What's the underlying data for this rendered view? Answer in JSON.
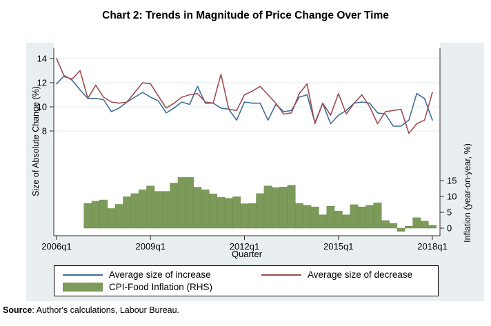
{
  "title": "Chart 2: Trends in Magnitude of Price Change Over Time",
  "source_note": {
    "label": "Source",
    "text": ": Author's calculations, Labour Bureau."
  },
  "colors": {
    "panel_background": "#e9eef1",
    "plot_background": "#ffffff",
    "axis": "#2b2b2b",
    "gridline": "#e3e9ed",
    "increase_line": "#3c6d99",
    "decrease_line": "#a04a50",
    "inflation_bar": "#7c9b5a",
    "inflation_bar_edge": "#6d8a4c"
  },
  "chart_data": {
    "type": "combo",
    "x_axis": {
      "label": "Quarter",
      "tick_labels": [
        "2006q1",
        "2009q1",
        "2012q1",
        "2015q1",
        "2018q1"
      ]
    },
    "y_left": {
      "label": "Size of Absolute Change (%)",
      "ticks": [
        8,
        10,
        12,
        14
      ]
    },
    "y_right": {
      "label": "Inflation (year-on-year, %)",
      "ticks": [
        0,
        5,
        10,
        15
      ]
    },
    "legend_position": "bottom",
    "grid": "horizontal-left-axis-only",
    "quarters": [
      "2006q1",
      "2006q2",
      "2006q3",
      "2006q4",
      "2007q1",
      "2007q2",
      "2007q3",
      "2007q4",
      "2008q1",
      "2008q2",
      "2008q3",
      "2008q4",
      "2009q1",
      "2009q2",
      "2009q3",
      "2009q4",
      "2010q1",
      "2010q2",
      "2010q3",
      "2010q4",
      "2011q1",
      "2011q2",
      "2011q3",
      "2011q4",
      "2012q1",
      "2012q2",
      "2012q3",
      "2012q4",
      "2013q1",
      "2013q2",
      "2013q3",
      "2013q4",
      "2014q1",
      "2014q2",
      "2014q3",
      "2014q4",
      "2015q1",
      "2015q2",
      "2015q3",
      "2015q4",
      "2016q1",
      "2016q2",
      "2016q3",
      "2016q4",
      "2017q1",
      "2017q2",
      "2017q3",
      "2017q4",
      "2018q1"
    ],
    "series": [
      {
        "name": "Average size of increase",
        "type": "line",
        "axis": "left",
        "color": "#3c6d99",
        "start_quarter": "2006q1",
        "values": [
          11.9,
          12.6,
          12.2,
          11.4,
          10.7,
          10.7,
          10.6,
          9.6,
          9.9,
          10.4,
          10.8,
          11.2,
          10.8,
          10.5,
          9.5,
          9.9,
          10.4,
          10.2,
          11.7,
          10.3,
          10.3,
          9.9,
          9.8,
          8.9,
          10.4,
          10.3,
          10.3,
          8.9,
          10.2,
          9.6,
          9.7,
          10.8,
          11.0,
          8.7,
          10.3,
          8.6,
          9.3,
          9.7,
          10.3,
          10.4,
          10.3,
          9.5,
          9.4,
          8.4,
          8.4,
          8.9,
          11.1,
          10.7,
          8.9
        ]
      },
      {
        "name": "Average size of decrease",
        "type": "line",
        "axis": "left",
        "color": "#a04a50",
        "start_quarter": "2006q1",
        "values": [
          14.0,
          12.5,
          12.3,
          13.0,
          10.7,
          11.8,
          10.8,
          10.4,
          10.3,
          10.4,
          11.2,
          12.0,
          11.9,
          10.9,
          9.9,
          10.3,
          10.8,
          11.0,
          11.1,
          10.4,
          10.3,
          12.7,
          9.8,
          9.7,
          11.0,
          11.3,
          11.7,
          11.0,
          10.3,
          9.4,
          9.5,
          11.1,
          11.9,
          8.6,
          10.3,
          9.3,
          11.1,
          9.4,
          10.3,
          11.0,
          10.0,
          8.6,
          9.6,
          9.7,
          9.8,
          7.8,
          8.6,
          8.9,
          11.2
        ]
      },
      {
        "name": "CPI-Food Inflation (RHS)",
        "type": "bar",
        "axis": "right",
        "color": "#7c9b5a",
        "start_quarter": "2007q1",
        "values": [
          7.8,
          8.5,
          8.9,
          6.2,
          7.5,
          9.9,
          10.9,
          12.1,
          13.3,
          11.6,
          11.6,
          14.2,
          16.0,
          16.0,
          12.9,
          12.1,
          10.8,
          9.7,
          9.4,
          9.9,
          7.7,
          7.8,
          10.9,
          13.3,
          12.8,
          13.0,
          13.5,
          7.8,
          7.2,
          6.7,
          4.2,
          6.9,
          5.4,
          4.2,
          7.4,
          6.7,
          7.2,
          8.0,
          2.4,
          1.5,
          -1.0,
          0.6,
          3.3,
          2.2,
          0.9
        ]
      }
    ]
  }
}
